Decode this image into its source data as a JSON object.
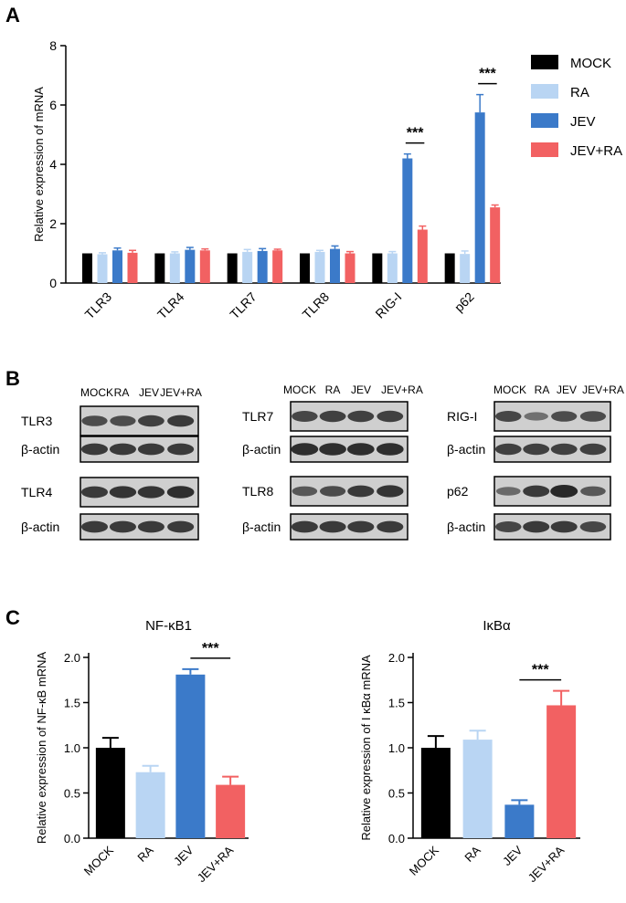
{
  "panels": {
    "a": {
      "letter": "A"
    },
    "b": {
      "letter": "B"
    },
    "c": {
      "letter": "C"
    }
  },
  "colors": {
    "MOCK": "#000000",
    "RA": "#b9d5f3",
    "JEV": "#3b7ac9",
    "JEV+RA": "#f26162"
  },
  "chart_data": [
    {
      "id": "A",
      "type": "bar",
      "title": "",
      "xlabel": "",
      "ylabel": "Relative expression of mRNA",
      "ylim": [
        0,
        8
      ],
      "yticks": [
        0,
        2,
        4,
        6,
        8
      ],
      "categories": [
        "TLR3",
        "TLR4",
        "TLR7",
        "TLR8",
        "RIG-I",
        "p62"
      ],
      "series": [
        {
          "name": "MOCK",
          "values": [
            1.0,
            1.0,
            1.0,
            1.0,
            1.0,
            1.0
          ],
          "errors": [
            0,
            0,
            0,
            0,
            0,
            0
          ]
        },
        {
          "name": "RA",
          "values": [
            0.97,
            1.0,
            1.05,
            1.05,
            1.0,
            0.98
          ],
          "errors": [
            0.05,
            0.05,
            0.08,
            0.05,
            0.06,
            0.1
          ]
        },
        {
          "name": "JEV",
          "values": [
            1.1,
            1.12,
            1.08,
            1.15,
            4.2,
            5.75
          ],
          "errors": [
            0.08,
            0.08,
            0.08,
            0.1,
            0.15,
            0.6
          ]
        },
        {
          "name": "JEV+RA",
          "values": [
            1.02,
            1.1,
            1.1,
            1.0,
            1.8,
            2.55
          ],
          "errors": [
            0.08,
            0.05,
            0.04,
            0.06,
            0.12,
            0.08
          ]
        }
      ],
      "significance": [
        {
          "category": "RIG-I",
          "label": "***"
        },
        {
          "category": "p62",
          "label": "***"
        }
      ],
      "legend_placement": "right"
    },
    {
      "id": "C1",
      "type": "bar",
      "title": "NF-κB1",
      "xlabel": "",
      "ylabel": "Relative expression of NF-κB mRNA",
      "ylim": [
        0,
        2.0
      ],
      "yticks": [
        "0.0",
        "0.5",
        "1.0",
        "1.5",
        "2.0"
      ],
      "categories": [
        "MOCK",
        "RA",
        "JEV",
        "JEV+RA"
      ],
      "values": [
        1.0,
        0.73,
        1.81,
        0.59
      ],
      "errors": [
        0.11,
        0.07,
        0.06,
        0.09
      ],
      "significance": [
        {
          "from": "JEV",
          "to": "JEV+RA",
          "label": "***"
        }
      ]
    },
    {
      "id": "C2",
      "type": "bar",
      "title": "IκBα",
      "xlabel": "",
      "ylabel": "Relative expression of I κBα mRNA",
      "ylim": [
        0,
        2.0
      ],
      "yticks": [
        "0.0",
        "0.5",
        "1.0",
        "1.5",
        "2.0"
      ],
      "categories": [
        "MOCK",
        "RA",
        "JEV",
        "JEV+RA"
      ],
      "values": [
        1.0,
        1.09,
        0.37,
        1.47
      ],
      "errors": [
        0.13,
        0.1,
        0.05,
        0.16
      ],
      "significance": [
        {
          "from": "JEV",
          "to": "JEV+RA",
          "label": "***"
        }
      ]
    }
  ],
  "blots": {
    "groups": [
      {
        "header": [
          "MOCK",
          "RA",
          "JEV",
          "JEV+RA"
        ],
        "rows": [
          "TLR3",
          "β-actin",
          "TLR4",
          "β-actin"
        ]
      },
      {
        "header": [
          "MOCK",
          "RA",
          "JEV",
          "JEV+RA"
        ],
        "rows": [
          "TLR7",
          "β-actin",
          "TLR8",
          "β-actin"
        ]
      },
      {
        "header": [
          "MOCK",
          "RA",
          "JEV",
          "JEV+RA"
        ],
        "rows": [
          "RIG-I",
          "β-actin",
          "p62",
          "β-actin"
        ]
      }
    ]
  }
}
